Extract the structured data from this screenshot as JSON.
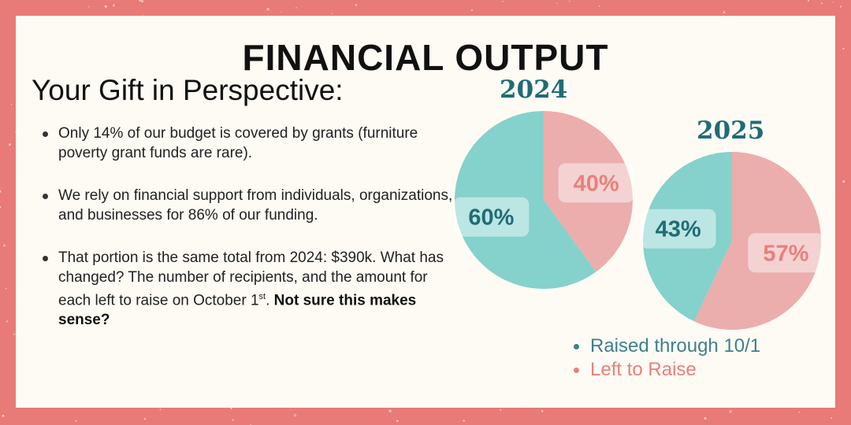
{
  "header": {
    "title": "FINANCIAL OUTPUT",
    "subtitle": "Your Gift in Perspective:"
  },
  "bullets": {
    "b1": "Only 14% of our budget is covered by grants (furniture poverty grant funds are rare).",
    "b2": "We rely on financial support from individuals, organizations, and businesses for 86% of our funding.",
    "b3_main": "That portion is the same total from 2024: $390k. What has changed? The number of recipients, and the amount for each left to raise on October 1",
    "b3_sup": "st",
    "b3_after": ". ",
    "b3_bold": "Not sure this makes sense?"
  },
  "colors": {
    "raised": "#85d1cc",
    "left": "#ecadad",
    "year_text": "#1f6c76",
    "raised_legend": "#3f7f8d",
    "left_legend": "#e8807c",
    "background": "#e87a78"
  },
  "chart_data": [
    {
      "type": "pie",
      "title": "2024",
      "labels": [
        "Raised through 10/1",
        "Left to Raise"
      ],
      "values": [
        60,
        40
      ],
      "value_labels": [
        "60%",
        "40%"
      ]
    },
    {
      "type": "pie",
      "title": "2025",
      "labels": [
        "Raised through 10/1",
        "Left to Raise"
      ],
      "values": [
        43,
        57
      ],
      "value_labels": [
        "43%",
        "57%"
      ]
    }
  ],
  "legend": {
    "items": [
      "Raised through 10/1",
      "Left to Raise"
    ]
  }
}
